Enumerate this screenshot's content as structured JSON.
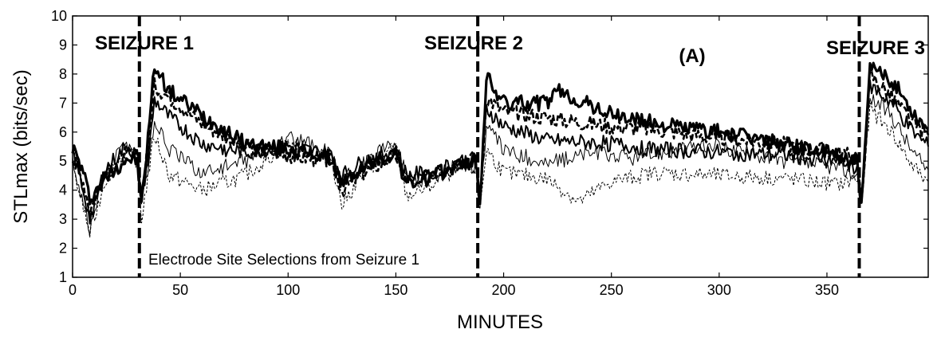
{
  "chart_data": {
    "type": "line",
    "title": "",
    "xlabel": "MINUTES",
    "ylabel": "STLmax (bits/sec)",
    "xlim": [
      0,
      397
    ],
    "ylim": [
      1,
      10
    ],
    "x_ticks": [
      0,
      50,
      100,
      150,
      200,
      250,
      300,
      350
    ],
    "y_ticks": [
      1,
      2,
      3,
      4,
      5,
      6,
      7,
      8,
      9,
      10
    ],
    "grid": false,
    "panel_label": "(A)",
    "annotation": "Electrode Site Selections from Seizure 1",
    "seizures": [
      {
        "label": "SEIZURE 1",
        "x": 31
      },
      {
        "label": "SEIZURE 2",
        "x": 188
      },
      {
        "label": "SEIZURE 3",
        "x": 365
      }
    ],
    "series": [
      {
        "style": "thick",
        "x": [
          0,
          5,
          8,
          15,
          25,
          30,
          32,
          35,
          38,
          45,
          60,
          80,
          100,
          120,
          125,
          135,
          150,
          155,
          165,
          180,
          187,
          189,
          192,
          200,
          220,
          225,
          250,
          270,
          300,
          330,
          355,
          364,
          366,
          370,
          380,
          390,
          397
        ],
        "y": [
          5.5,
          4.6,
          3.7,
          4.4,
          5.1,
          5.0,
          3.5,
          5.8,
          8.3,
          7.4,
          6.6,
          5.6,
          5.4,
          5.1,
          4.2,
          4.8,
          5.3,
          4.2,
          4.4,
          4.9,
          5.0,
          3.6,
          7.9,
          7.0,
          7.0,
          7.4,
          6.6,
          6.3,
          6.0,
          5.6,
          5.2,
          5.0,
          3.3,
          8.2,
          7.8,
          6.7,
          6.1
        ]
      },
      {
        "style": "thick-dash",
        "x": [
          0,
          5,
          8,
          15,
          25,
          30,
          32,
          35,
          38,
          45,
          60,
          80,
          100,
          120,
          125,
          135,
          150,
          155,
          165,
          180,
          187,
          189,
          192,
          200,
          220,
          250,
          270,
          300,
          330,
          355,
          364,
          366,
          370,
          380,
          390,
          397
        ],
        "y": [
          5.1,
          4.3,
          3.3,
          4.5,
          5.3,
          5.1,
          3.7,
          5.5,
          7.6,
          7.2,
          6.3,
          5.5,
          5.2,
          5.0,
          4.0,
          4.6,
          5.2,
          4.3,
          4.5,
          5.0,
          5.1,
          3.5,
          7.2,
          6.7,
          6.5,
          6.2,
          6.1,
          5.8,
          5.6,
          5.3,
          5.1,
          3.4,
          8.0,
          7.2,
          6.3,
          5.9
        ]
      },
      {
        "style": "medium",
        "x": [
          0,
          5,
          8,
          15,
          25,
          30,
          32,
          35,
          38,
          45,
          60,
          80,
          100,
          120,
          125,
          135,
          150,
          155,
          165,
          180,
          187,
          189,
          192,
          200,
          220,
          250,
          270,
          300,
          330,
          355,
          364,
          366,
          370,
          380,
          390,
          397
        ],
        "y": [
          5.3,
          4.0,
          3.0,
          4.7,
          5.5,
          5.2,
          3.8,
          5.0,
          7.1,
          6.5,
          5.6,
          5.3,
          5.5,
          5.2,
          4.5,
          5.0,
          5.4,
          4.5,
          4.6,
          5.0,
          5.1,
          3.7,
          6.8,
          6.2,
          5.7,
          5.6,
          5.4,
          5.3,
          5.2,
          5.0,
          4.8,
          3.6,
          7.6,
          7.0,
          6.0,
          5.5
        ]
      },
      {
        "style": "thin",
        "x": [
          0,
          5,
          8,
          15,
          25,
          30,
          32,
          35,
          38,
          45,
          60,
          80,
          100,
          120,
          125,
          135,
          150,
          155,
          165,
          180,
          187,
          189,
          192,
          200,
          220,
          240,
          260,
          280,
          300,
          330,
          355,
          364,
          366,
          370,
          380,
          390,
          397
        ],
        "y": [
          5.0,
          3.6,
          2.6,
          4.6,
          5.7,
          5.1,
          3.6,
          4.8,
          6.4,
          5.4,
          4.6,
          5.0,
          5.8,
          5.3,
          4.3,
          4.9,
          5.7,
          4.4,
          4.3,
          4.9,
          4.8,
          3.5,
          6.2,
          5.4,
          4.9,
          5.3,
          5.1,
          5.4,
          5.5,
          5.0,
          4.8,
          4.5,
          3.8,
          7.2,
          6.6,
          5.3,
          4.7
        ]
      },
      {
        "style": "thin-dash",
        "x": [
          0,
          5,
          8,
          15,
          25,
          30,
          32,
          35,
          38,
          45,
          60,
          80,
          100,
          120,
          125,
          135,
          150,
          155,
          165,
          180,
          187,
          189,
          192,
          200,
          220,
          235,
          250,
          270,
          300,
          330,
          355,
          364,
          366,
          370,
          380,
          390,
          397
        ],
        "y": [
          4.8,
          3.4,
          2.5,
          4.3,
          5.4,
          5.0,
          3.0,
          4.5,
          5.9,
          4.5,
          4.0,
          4.5,
          5.6,
          5.1,
          3.5,
          4.6,
          5.5,
          3.8,
          4.1,
          4.8,
          4.7,
          3.4,
          5.4,
          4.6,
          4.4,
          3.6,
          4.3,
          4.6,
          4.5,
          4.4,
          4.2,
          4.4,
          3.9,
          6.8,
          6.0,
          4.8,
          4.3
        ]
      }
    ]
  }
}
